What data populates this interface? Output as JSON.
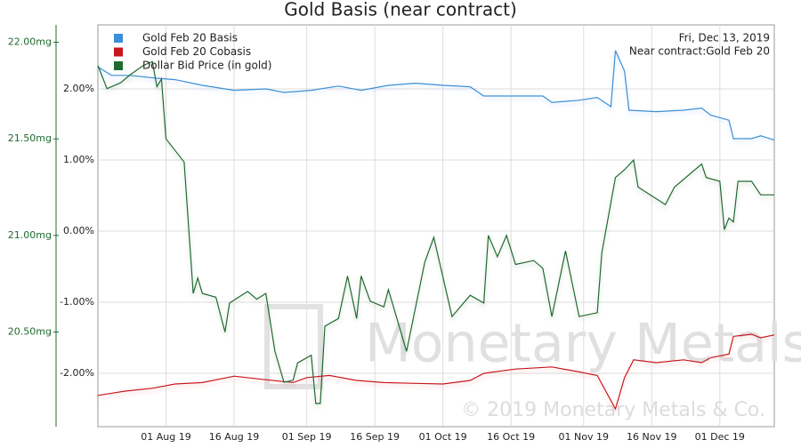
{
  "chart_data": {
    "type": "line",
    "title": "Gold Basis (near contract)",
    "annotations": [
      "Fri, Dec 13, 2019",
      "Near contract:Gold Feb 20"
    ],
    "watermark": [
      "Monetary Metals",
      "© 2019 Monetary Metals & Co."
    ],
    "xlim": [
      "2019-07-17",
      "2019-12-13"
    ],
    "xticks": [
      {
        "value": "2019-08-01",
        "label": "01 Aug 19"
      },
      {
        "value": "2019-08-16",
        "label": "16 Aug 19"
      },
      {
        "value": "2019-09-01",
        "label": "01 Sep 19"
      },
      {
        "value": "2019-09-16",
        "label": "16 Sep 19"
      },
      {
        "value": "2019-10-01",
        "label": "01 Oct 19"
      },
      {
        "value": "2019-10-16",
        "label": "16 Oct 19"
      },
      {
        "value": "2019-11-01",
        "label": "01 Nov 19"
      },
      {
        "value": "2019-11-16",
        "label": "16 Nov 19"
      },
      {
        "value": "2019-12-01",
        "label": "01 Dec 19"
      }
    ],
    "ylim": [
      20.01,
      22.09
    ],
    "yticks": [
      {
        "value": 20.5,
        "label": "20.50mg"
      },
      {
        "value": 21,
        "label": "21.00mg"
      },
      {
        "value": 21.5,
        "label": "21.50mg"
      },
      {
        "value": 22,
        "label": "22.00mg"
      }
    ],
    "y2lim": [
      -2.75,
      2.9
    ],
    "y2ticks": [
      {
        "value": -2,
        "label": "-2.00%"
      },
      {
        "value": -1,
        "label": "-1.00%"
      },
      {
        "value": 0,
        "label": "0.00%"
      },
      {
        "value": 1,
        "label": "1.00%"
      },
      {
        "value": 2,
        "label": "2.00%"
      }
    ],
    "grid": true,
    "legend": "top-left",
    "series": [
      {
        "name": "Gold Feb 20 Basis",
        "color": "#3a8fd6",
        "axis": "y2",
        "x": [
          "2019-07-17",
          "2019-07-20",
          "2019-07-24",
          "2019-07-30",
          "2019-08-03",
          "2019-08-09",
          "2019-08-16",
          "2019-08-23",
          "2019-08-27",
          "2019-09-02",
          "2019-09-08",
          "2019-09-13",
          "2019-09-19",
          "2019-09-25",
          "2019-10-01",
          "2019-10-07",
          "2019-10-10",
          "2019-10-17",
          "2019-10-23",
          "2019-10-25",
          "2019-10-31",
          "2019-11-04",
          "2019-11-07",
          "2019-11-08",
          "2019-11-10",
          "2019-11-11",
          "2019-11-17",
          "2019-11-23",
          "2019-11-27",
          "2019-11-29",
          "2019-12-03",
          "2019-12-04",
          "2019-12-08",
          "2019-12-10",
          "2019-12-13"
        ],
        "values": [
          2.31,
          2.19,
          2.19,
          2.15,
          2.13,
          2.05,
          1.98,
          2.0,
          1.95,
          1.98,
          2.04,
          1.98,
          2.05,
          2.08,
          2.05,
          2.03,
          1.9,
          1.9,
          1.9,
          1.81,
          1.84,
          1.88,
          1.75,
          2.54,
          2.25,
          1.7,
          1.68,
          1.7,
          1.73,
          1.63,
          1.56,
          1.3,
          1.3,
          1.34,
          1.28
        ]
      },
      {
        "name": "Gold Feb 20 Cobasis",
        "color": "#c8161d",
        "axis": "y2",
        "x": [
          "2019-07-17",
          "2019-07-23",
          "2019-07-29",
          "2019-08-03",
          "2019-08-09",
          "2019-08-16",
          "2019-08-23",
          "2019-08-29",
          "2019-09-01",
          "2019-09-06",
          "2019-09-12",
          "2019-09-18",
          "2019-09-24",
          "2019-10-01",
          "2019-10-07",
          "2019-10-10",
          "2019-10-17",
          "2019-10-25",
          "2019-10-31",
          "2019-11-04",
          "2019-11-08",
          "2019-11-10",
          "2019-11-12",
          "2019-11-17",
          "2019-11-23",
          "2019-11-27",
          "2019-11-29",
          "2019-12-03",
          "2019-12-04",
          "2019-12-08",
          "2019-12-10",
          "2019-12-13"
        ],
        "values": [
          -2.31,
          -2.25,
          -2.21,
          -2.15,
          -2.13,
          -2.04,
          -2.09,
          -2.13,
          -2.06,
          -2.03,
          -2.1,
          -2.13,
          -2.14,
          -2.15,
          -2.1,
          -2.0,
          -1.94,
          -1.91,
          -1.98,
          -2.03,
          -2.5,
          -2.06,
          -1.81,
          -1.85,
          -1.81,
          -1.85,
          -1.78,
          -1.73,
          -1.48,
          -1.45,
          -1.5,
          -1.46
        ]
      },
      {
        "name": "Dollar Bid Price (in gold)",
        "color": "#1f6b2f",
        "axis": "y",
        "x": [
          "2019-07-17",
          "2019-07-19",
          "2019-07-22",
          "2019-07-24",
          "2019-07-27",
          "2019-07-29",
          "2019-07-30",
          "2019-07-31",
          "2019-08-01",
          "2019-08-05",
          "2019-08-07",
          "2019-08-08",
          "2019-08-09",
          "2019-08-12",
          "2019-08-14",
          "2019-08-15",
          "2019-08-19",
          "2019-08-21",
          "2019-08-23",
          "2019-08-25",
          "2019-08-27",
          "2019-08-29",
          "2019-08-30",
          "2019-09-02",
          "2019-09-03",
          "2019-09-04",
          "2019-09-05",
          "2019-09-08",
          "2019-09-10",
          "2019-09-12",
          "2019-09-13",
          "2019-09-15",
          "2019-09-18",
          "2019-09-19",
          "2019-09-23",
          "2019-09-27",
          "2019-09-29",
          "2019-10-03",
          "2019-10-07",
          "2019-10-10",
          "2019-10-11",
          "2019-10-13",
          "2019-10-15",
          "2019-10-17",
          "2019-10-21",
          "2019-10-23",
          "2019-10-25",
          "2019-10-28",
          "2019-10-31",
          "2019-11-04",
          "2019-11-05",
          "2019-11-08",
          "2019-11-10",
          "2019-11-12",
          "2019-11-13",
          "2019-11-19",
          "2019-11-21",
          "2019-11-27",
          "2019-11-28",
          "2019-12-01",
          "2019-12-02",
          "2019-12-03",
          "2019-12-04",
          "2019-12-05",
          "2019-12-08",
          "2019-12-10",
          "2019-12-13"
        ],
        "values": [
          21.88,
          21.76,
          21.79,
          21.83,
          21.88,
          21.9,
          21.77,
          21.81,
          21.5,
          21.38,
          20.7,
          20.78,
          20.7,
          20.68,
          20.5,
          20.65,
          20.71,
          20.67,
          20.7,
          20.4,
          20.24,
          20.25,
          20.34,
          20.38,
          20.13,
          20.13,
          20.53,
          20.57,
          20.79,
          20.57,
          20.79,
          20.66,
          20.63,
          20.72,
          20.4,
          20.86,
          20.99,
          20.58,
          20.69,
          20.65,
          21.0,
          20.89,
          21.0,
          20.85,
          20.87,
          20.83,
          20.58,
          20.92,
          20.58,
          20.6,
          20.91,
          21.3,
          21.34,
          21.39,
          21.25,
          21.16,
          21.25,
          21.37,
          21.3,
          21.28,
          21.03,
          21.09,
          21.07,
          21.28,
          21.28,
          21.21,
          21.21
        ]
      }
    ]
  }
}
